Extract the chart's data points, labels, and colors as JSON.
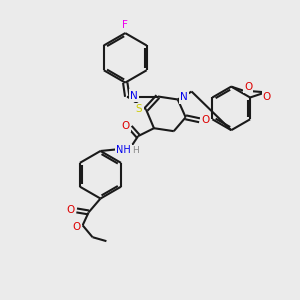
{
  "bg": "#ebebeb",
  "bc": "#1a1a1a",
  "fc": {
    "F": "#ee00ee",
    "N": "#0000ee",
    "O": "#dd0000",
    "S": "#cccc00",
    "NH": "#0000ee",
    "C": "#1a1a1a"
  },
  "figsize": [
    3.0,
    3.0
  ],
  "dpi": 100
}
